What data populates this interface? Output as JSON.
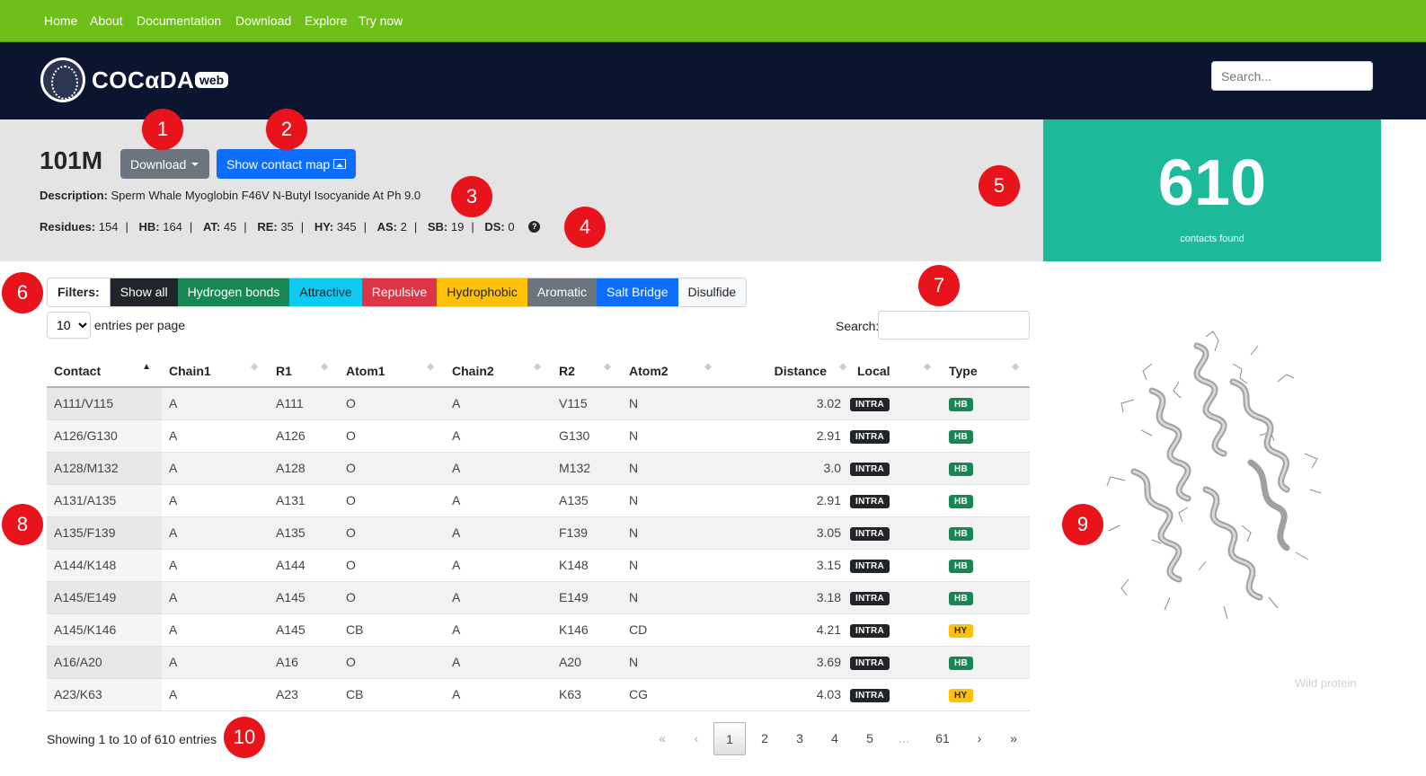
{
  "topnav": [
    "Home",
    "About",
    "Documentation",
    "Download",
    "Explore",
    "Try now"
  ],
  "header": {
    "logo_text": "COCαDA",
    "logo_badge": "web",
    "search_placeholder": "Search..."
  },
  "summary": {
    "pdb_id": "101M",
    "download_label": "Download",
    "contact_map_label": "Show contact map",
    "description_label": "Description:",
    "description": "Sperm Whale Myoglobin F46V N-Butyl Isocyanide At Ph 9.0",
    "stats": [
      {
        "k": "Residues:",
        "v": "154"
      },
      {
        "k": "HB:",
        "v": "164"
      },
      {
        "k": "AT:",
        "v": "45"
      },
      {
        "k": "RE:",
        "v": "35"
      },
      {
        "k": "HY:",
        "v": "345"
      },
      {
        "k": "AS:",
        "v": "2"
      },
      {
        "k": "SB:",
        "v": "19"
      },
      {
        "k": "DS:",
        "v": "0"
      }
    ],
    "separator": "|"
  },
  "counter": {
    "value": "610",
    "label": "contacts found",
    "color": "#1cb99a"
  },
  "filters": {
    "label": "Filters:",
    "items": [
      "Show all",
      "Hydrogen bonds",
      "Attractive",
      "Repulsive",
      "Hydrophobic",
      "Aromatic",
      "Salt Bridge",
      "Disulfide"
    ]
  },
  "entries": {
    "value": "10",
    "suffix": "entries per page"
  },
  "table_search_label": "Search:",
  "table": {
    "columns": [
      "Contact",
      "Chain1",
      "R1",
      "Atom1",
      "Chain2",
      "R2",
      "Atom2",
      "Distance",
      "Local",
      "Type"
    ],
    "rows": [
      [
        "A111/V115",
        "A",
        "A111",
        "O",
        "A",
        "V115",
        "N",
        "3.02",
        "INTRA",
        "HB"
      ],
      [
        "A126/G130",
        "A",
        "A126",
        "O",
        "A",
        "G130",
        "N",
        "2.91",
        "INTRA",
        "HB"
      ],
      [
        "A128/M132",
        "A",
        "A128",
        "O",
        "A",
        "M132",
        "N",
        "3.0",
        "INTRA",
        "HB"
      ],
      [
        "A131/A135",
        "A",
        "A131",
        "O",
        "A",
        "A135",
        "N",
        "2.91",
        "INTRA",
        "HB"
      ],
      [
        "A135/F139",
        "A",
        "A135",
        "O",
        "A",
        "F139",
        "N",
        "3.05",
        "INTRA",
        "HB"
      ],
      [
        "A144/K148",
        "A",
        "A144",
        "O",
        "A",
        "K148",
        "N",
        "3.15",
        "INTRA",
        "HB"
      ],
      [
        "A145/E149",
        "A",
        "A145",
        "O",
        "A",
        "E149",
        "N",
        "3.18",
        "INTRA",
        "HB"
      ],
      [
        "A145/K146",
        "A",
        "A145",
        "CB",
        "A",
        "K146",
        "CD",
        "4.21",
        "INTRA",
        "HY"
      ],
      [
        "A16/A20",
        "A",
        "A16",
        "O",
        "A",
        "A20",
        "N",
        "3.69",
        "INTRA",
        "HB"
      ],
      [
        "A23/K63",
        "A",
        "A23",
        "CB",
        "A",
        "K63",
        "CG",
        "4.03",
        "INTRA",
        "HY"
      ]
    ]
  },
  "showing": "Showing 1 to 10 of 610 entries",
  "pagination": [
    "«",
    "‹",
    "1",
    "2",
    "3",
    "4",
    "5",
    "…",
    "61",
    "›",
    "»"
  ],
  "protein_caption": "Wild protein",
  "markers": [
    "1",
    "2",
    "3",
    "4",
    "5",
    "6",
    "7",
    "8",
    "9",
    "10"
  ]
}
